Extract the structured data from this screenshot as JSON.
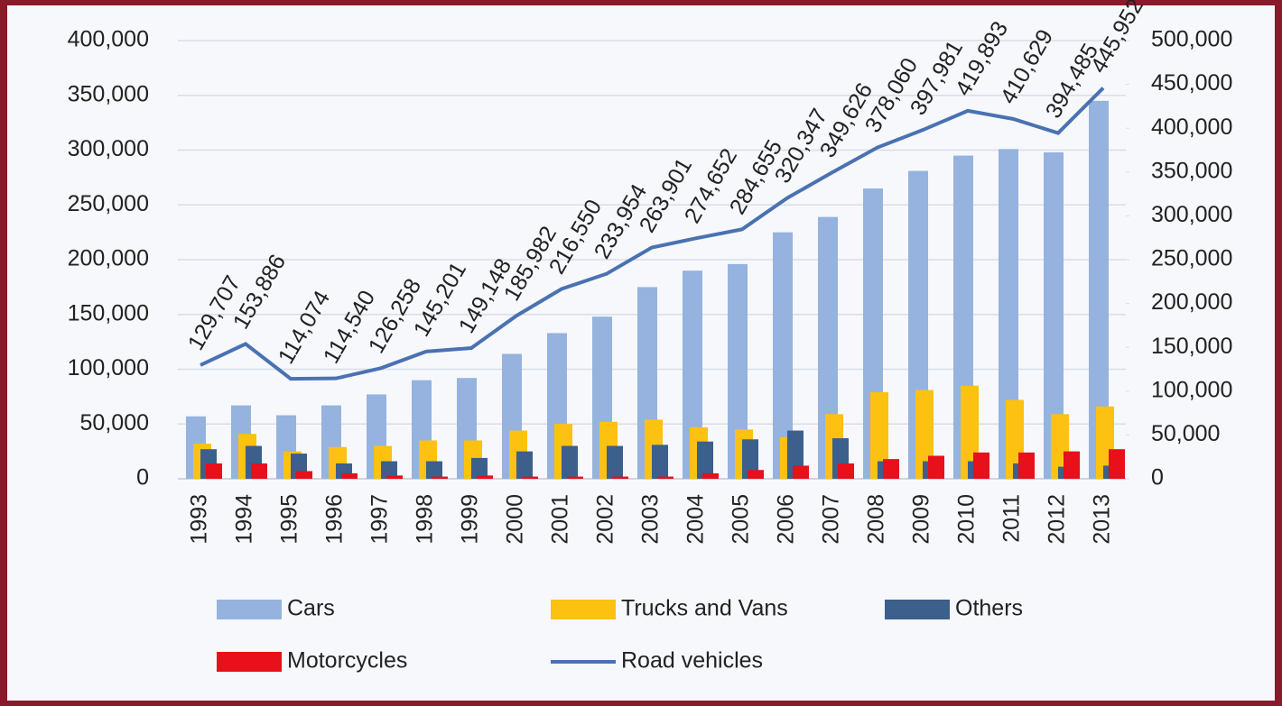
{
  "chart_data": {
    "type": "bar",
    "categories": [
      "1993",
      "1994",
      "1995",
      "1996",
      "1997",
      "1998",
      "1999",
      "2000",
      "2001",
      "2002",
      "2003",
      "2004",
      "2005",
      "2006",
      "2007",
      "2008",
      "2009",
      "2010",
      "2011",
      "2012",
      "2013"
    ],
    "series": [
      {
        "name": "Cars",
        "color": "#95b3de",
        "values": [
          57000,
          67000,
          58000,
          67000,
          77000,
          90000,
          92000,
          114000,
          133000,
          148000,
          175000,
          190000,
          196000,
          225000,
          239000,
          265000,
          281000,
          295000,
          301000,
          298000,
          345000
        ]
      },
      {
        "name": "Trucks and Vans",
        "color": "#fcc111",
        "values": [
          32000,
          41000,
          25000,
          29000,
          30000,
          35000,
          35000,
          44000,
          50000,
          52000,
          54000,
          47000,
          45000,
          38000,
          59000,
          79000,
          81000,
          85000,
          72000,
          59000,
          66000
        ]
      },
      {
        "name": "Others",
        "color": "#3c5f8c",
        "values": [
          27000,
          30000,
          23000,
          14000,
          16000,
          16000,
          19000,
          25000,
          30000,
          30000,
          31000,
          34000,
          36000,
          44000,
          37000,
          16000,
          16000,
          16000,
          14000,
          11000,
          12000
        ]
      },
      {
        "name": "Motorcycles",
        "color": "#e8101a",
        "values": [
          14000,
          14000,
          7000,
          5000,
          3000,
          2000,
          3000,
          2000,
          2000,
          2000,
          2000,
          5000,
          8000,
          12000,
          14000,
          18000,
          21000,
          24000,
          24000,
          25000,
          27000
        ]
      },
      {
        "name": "Road vehicles",
        "type": "line",
        "axis": "y2",
        "color": "#4a72b2",
        "values": [
          129707,
          153886,
          114074,
          114540,
          126258,
          145201,
          149148,
          185982,
          216550,
          233954,
          263901,
          274652,
          284655,
          320347,
          349626,
          378060,
          397981,
          419893,
          410629,
          394485,
          445952
        ],
        "value_labels": [
          "129,707",
          "153,886",
          "114,074",
          "114,540",
          "126,258",
          "145,201",
          "149,148",
          "185,982",
          "216,550",
          "233,954",
          "263,901",
          "274,652",
          "284,655",
          "320,347",
          "349,626",
          "378,060",
          "397,981",
          "419,893",
          "410,629",
          "394,485",
          "445,952"
        ]
      }
    ],
    "ylim": [
      0,
      400000
    ],
    "yticks": [
      0,
      {
        "value": 50000,
        "label": "50,000"
      },
      {
        "value": 100000,
        "label": "100,000"
      },
      {
        "value": 150000,
        "label": "150,000"
      },
      {
        "value": 200000,
        "label": "200,000"
      },
      {
        "value": 250000,
        "label": "250,000"
      },
      {
        "value": 300000,
        "label": "300,000"
      },
      {
        "value": 350000,
        "label": "350,000"
      },
      {
        "value": 400000,
        "label": "400,000"
      }
    ],
    "y2lim": [
      0,
      500000
    ],
    "y2ticks": [
      0,
      {
        "value": 50000,
        "label": "50,000"
      },
      {
        "value": 100000,
        "label": "100,000"
      },
      {
        "value": 150000,
        "label": "150,000"
      },
      {
        "value": 200000,
        "label": "200,000"
      },
      {
        "value": 250000,
        "label": "250,000"
      },
      {
        "value": 300000,
        "label": "300,000"
      },
      {
        "value": 350000,
        "label": "350,000"
      },
      {
        "value": 400000,
        "label": "400,000"
      },
      {
        "value": 450000,
        "label": "450,000"
      },
      {
        "value": 500000,
        "label": "500,000"
      }
    ],
    "grid": true
  }
}
